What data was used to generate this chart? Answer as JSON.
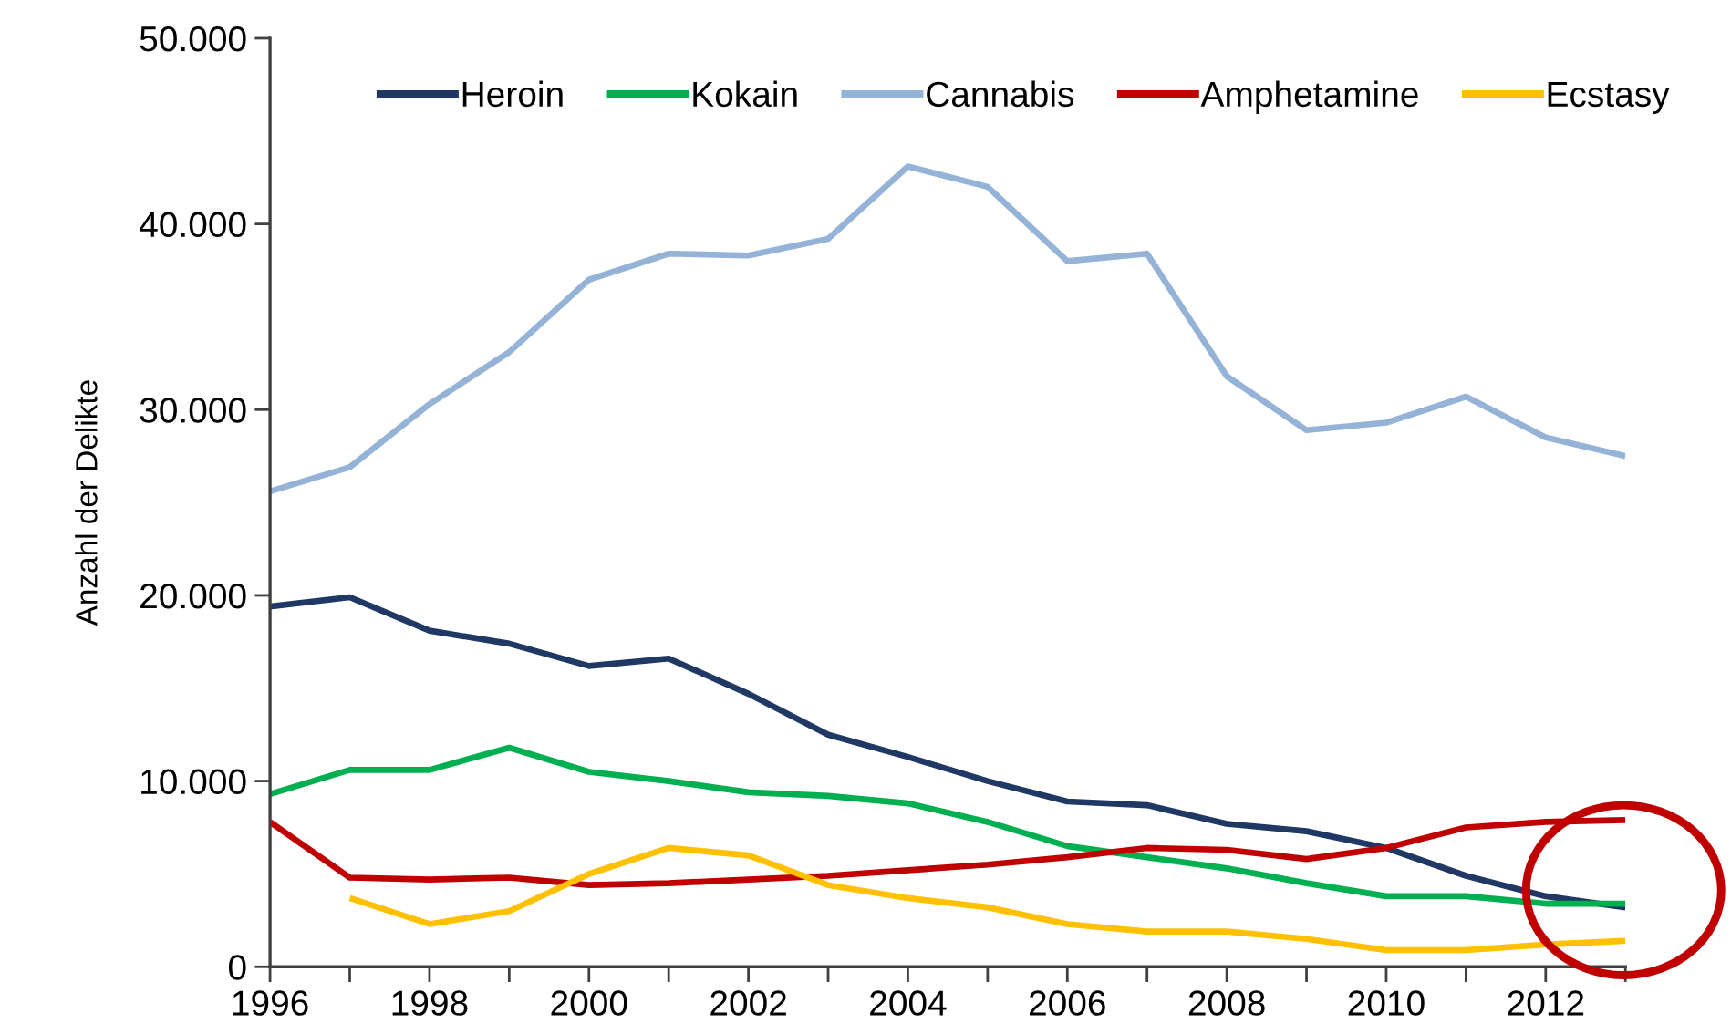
{
  "chart_data": {
    "type": "line",
    "ylabel": "Anzahl der Delikte",
    "x": [
      1996,
      1997,
      1998,
      1999,
      2000,
      2001,
      2002,
      2003,
      2004,
      2005,
      2006,
      2007,
      2008,
      2009,
      2010,
      2011,
      2012,
      2013
    ],
    "series": [
      {
        "name": "Heroin",
        "color": "#1f3864",
        "values": [
          19400,
          19900,
          18100,
          17400,
          16200,
          16600,
          14700,
          12500,
          11300,
          10000,
          8900,
          8700,
          7700,
          7300,
          6400,
          4900,
          3800,
          3200
        ]
      },
      {
        "name": "Kokain",
        "color": "#00b050",
        "values": [
          9300,
          10600,
          10600,
          11800,
          10500,
          10000,
          9400,
          9200,
          8800,
          7800,
          6500,
          5900,
          5300,
          4500,
          3800,
          3800,
          3400,
          3400
        ]
      },
      {
        "name": "Cannabis",
        "color": "#95b3d7",
        "values": [
          25600,
          26900,
          30300,
          33100,
          37000,
          38400,
          38300,
          39200,
          43100,
          42000,
          38000,
          38400,
          31800,
          28900,
          29300,
          30700,
          28500,
          27500
        ]
      },
      {
        "name": "Amphetamine",
        "color": "#c00000",
        "values": [
          7800,
          4800,
          4700,
          4800,
          4400,
          4500,
          4700,
          4900,
          5200,
          5500,
          5900,
          6400,
          6300,
          5800,
          6400,
          7500,
          7800,
          7900
        ]
      },
      {
        "name": "Ecstasy",
        "color": "#ffc000",
        "values": [
          null,
          3700,
          2300,
          3000,
          5000,
          6400,
          6000,
          4400,
          3700,
          3200,
          2300,
          1900,
          1900,
          1500,
          900,
          900,
          1200,
          1400
        ]
      }
    ],
    "xlim": [
      1996,
      2013
    ],
    "xticks": [
      1996,
      {
        "value": 1997,
        "label": null
      },
      1998,
      {
        "value": 1999,
        "label": null
      },
      2000,
      {
        "value": 2001,
        "label": null
      },
      2002,
      {
        "value": 2003,
        "label": null
      },
      2004,
      {
        "value": 2005,
        "label": null
      },
      2006,
      {
        "value": 2007,
        "label": null
      },
      2008,
      {
        "value": 2009,
        "label": null
      },
      2010,
      {
        "value": 2011,
        "label": null
      },
      2012,
      {
        "value": 2013,
        "label": null
      }
    ],
    "ylim": [
      0,
      50000
    ],
    "yticks": [
      0,
      {
        "value": 10000,
        "label": "10.000"
      },
      {
        "value": 20000,
        "label": "20.000"
      },
      {
        "value": 30000,
        "label": "30.000"
      },
      {
        "value": 40000,
        "label": "40.000"
      },
      {
        "value": 50000,
        "label": "50.000"
      }
    ],
    "legend": "top",
    "marker": "none",
    "line_style": "solid"
  }
}
